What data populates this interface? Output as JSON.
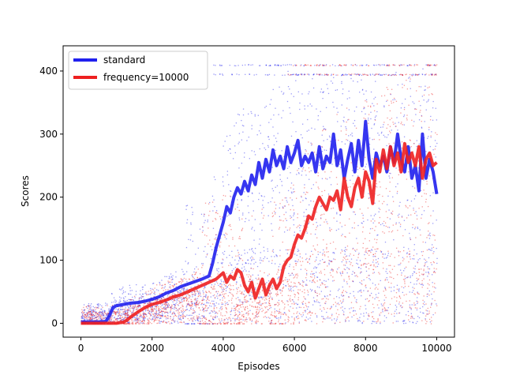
{
  "chart_data": {
    "type": "line",
    "title": "",
    "xlabel": "Episodes",
    "ylabel": "Scores",
    "xlim": [
      -500,
      10500
    ],
    "ylim": [
      -22,
      440
    ],
    "x_ticks": [
      0,
      2000,
      4000,
      6000,
      8000,
      10000
    ],
    "y_ticks": [
      0,
      100,
      200,
      300,
      400
    ],
    "grid": false,
    "legend_position": "top-left",
    "series": [
      {
        "name": "standard",
        "color": "#2020ee",
        "x": [
          0,
          500,
          700,
          800,
          900,
          1000,
          1200,
          1400,
          1600,
          1800,
          2000,
          2200,
          2400,
          2600,
          2800,
          3000,
          3200,
          3400,
          3600,
          3700,
          3800,
          3900,
          4000,
          4100,
          4200,
          4300,
          4400,
          4500,
          4600,
          4700,
          4800,
          4900,
          5000,
          5100,
          5200,
          5300,
          5400,
          5500,
          5600,
          5700,
          5800,
          5900,
          6000,
          6100,
          6200,
          6300,
          6400,
          6500,
          6600,
          6700,
          6800,
          6900,
          7000,
          7100,
          7200,
          7300,
          7400,
          7500,
          7600,
          7700,
          7800,
          7900,
          8000,
          8100,
          8200,
          8300,
          8400,
          8500,
          8600,
          8700,
          8800,
          8900,
          9000,
          9100,
          9200,
          9300,
          9400,
          9500,
          9600,
          9700,
          9800,
          9900,
          10000
        ],
        "values": [
          2,
          2,
          3,
          12,
          25,
          28,
          30,
          32,
          33,
          35,
          38,
          42,
          48,
          52,
          58,
          62,
          66,
          70,
          75,
          95,
          120,
          140,
          160,
          185,
          175,
          200,
          215,
          205,
          225,
          210,
          235,
          220,
          255,
          230,
          260,
          240,
          275,
          250,
          265,
          245,
          280,
          255,
          270,
          290,
          250,
          265,
          255,
          270,
          240,
          280,
          245,
          265,
          255,
          300,
          250,
          275,
          230,
          260,
          285,
          240,
          290,
          250,
          320,
          260,
          230,
          270,
          250,
          265,
          240,
          280,
          255,
          300,
          260,
          240,
          280,
          230,
          250,
          210,
          300,
          230,
          260,
          240,
          205
        ]
      },
      {
        "name": "frequency=10000",
        "color": "#ee2020",
        "x": [
          0,
          500,
          1000,
          1200,
          1300,
          1400,
          1500,
          1600,
          1800,
          2000,
          2200,
          2400,
          2600,
          2800,
          3000,
          3200,
          3400,
          3600,
          3800,
          4000,
          4100,
          4200,
          4300,
          4400,
          4500,
          4600,
          4700,
          4800,
          4900,
          5000,
          5100,
          5200,
          5300,
          5400,
          5500,
          5600,
          5700,
          5800,
          5900,
          6000,
          6100,
          6200,
          6300,
          6400,
          6500,
          6600,
          6700,
          6800,
          6900,
          7000,
          7100,
          7200,
          7300,
          7400,
          7500,
          7600,
          7700,
          7800,
          7900,
          8000,
          8100,
          8200,
          8300,
          8400,
          8500,
          8600,
          8700,
          8800,
          8900,
          9000,
          9100,
          9200,
          9300,
          9400,
          9500,
          9600,
          9700,
          9800,
          9900,
          10000
        ],
        "values": [
          0,
          0,
          0,
          2,
          5,
          10,
          14,
          18,
          25,
          30,
          33,
          37,
          42,
          45,
          50,
          55,
          60,
          65,
          70,
          80,
          65,
          75,
          70,
          85,
          80,
          60,
          50,
          65,
          40,
          55,
          70,
          45,
          60,
          70,
          55,
          65,
          90,
          100,
          105,
          125,
          140,
          135,
          150,
          170,
          165,
          185,
          200,
          190,
          180,
          200,
          195,
          210,
          180,
          230,
          200,
          185,
          215,
          230,
          200,
          240,
          225,
          190,
          260,
          240,
          275,
          245,
          280,
          250,
          270,
          240,
          285,
          255,
          270,
          250,
          280,
          230,
          260,
          270,
          250,
          255
        ]
      }
    ],
    "scatter_note": "dense scattered per-episode scores behind each smoothed series"
  }
}
